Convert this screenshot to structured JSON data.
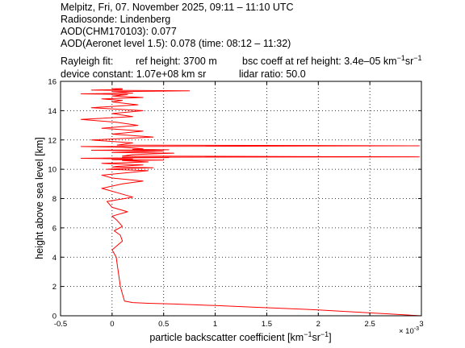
{
  "header": {
    "line1": "Melpitz, Fri, 07. November 2025, 09:11 – 11:10 UTC",
    "line2": "Radiosonde: Lindenberg",
    "line3": "AOD(CHM170103): 0.077",
    "line4": "AOD(Aeronet level 1.5): 0.078   (time: 08:12 – 11:32)",
    "rayleigh_label": "Rayleigh fit:",
    "ref_height": "ref height: 3700 m",
    "bsc_coeff_prefix": "bsc coeff at ref height: 3.4e–05 km",
    "bsc_coeff_mid": "sr",
    "sup_minus1": "−1",
    "device_constant": "device constant: 1.07e+08 km sr",
    "lidar_ratio": "lidar ratio: 50.0"
  },
  "colors": {
    "line": "#ff0000",
    "axes": "#000000"
  },
  "chart_data": {
    "type": "line",
    "title": "",
    "xlabel": "particle backscatter coefficient [km",
    "xlabel_mid": "sr",
    "xlabel_end": "]",
    "x_exponent": "× 10",
    "x_exponent_power": "-3",
    "ylabel": "height above sea level [km]",
    "xlim": [
      -0.5,
      3.0
    ],
    "ylim": [
      0,
      16
    ],
    "xticks": [
      -0.5,
      0,
      0.5,
      1,
      1.5,
      2,
      2.5,
      3
    ],
    "xtick_labels": [
      "-0.5",
      "0",
      "0.5",
      "1",
      "1.5",
      "2",
      "2.5",
      "3"
    ],
    "yticks": [
      0,
      2,
      4,
      6,
      8,
      10,
      12,
      14,
      16
    ],
    "ytick_labels": [
      "0",
      "2",
      "4",
      "6",
      "8",
      "10",
      "12",
      "14",
      "16"
    ],
    "grid": true,
    "series": [
      {
        "x": [
          3.0,
          2.5,
          2.0,
          1.5,
          1.0,
          0.6,
          0.35,
          0.2,
          0.12,
          0.1,
          0.08,
          0.07,
          0.06,
          0.05,
          0.04,
          0.0,
          0.05,
          0.1,
          0.08,
          0.02,
          0.1,
          0.05,
          0.0,
          0.15,
          0.0,
          -0.05,
          0.2,
          0.05,
          -0.1,
          0.1,
          0.3,
          0.0,
          -0.1,
          0.2,
          0.35,
          -0.05,
          0.1,
          0.4,
          0.0,
          0.05,
          0.3,
          0.1,
          -0.1,
          0.35,
          0.1,
          0.5,
          0.0,
          0.2,
          -0.3,
          0.55,
          0.1,
          2.98,
          0.1,
          0.2,
          0.6,
          0.0,
          0.3,
          0.5,
          -0.2,
          0.55,
          0.2,
          0.3,
          0.1,
          -0.3,
          2.98,
          0.05,
          0.2,
          -0.2,
          0.4,
          0.0,
          0.3,
          -0.1,
          0.25,
          0.05,
          -0.3,
          0.2,
          0.0,
          0.3,
          -0.2,
          0.25,
          0.0,
          0.1,
          -0.1,
          0.3,
          0.0,
          0.15,
          -0.3,
          0.2,
          0.0,
          0.75,
          -0.2,
          0.1,
          0.0,
          0.1
        ],
        "y": [
          0.0,
          0.2,
          0.4,
          0.55,
          0.7,
          0.8,
          0.85,
          0.9,
          1.0,
          1.5,
          2.0,
          2.5,
          3.0,
          3.5,
          4.0,
          4.5,
          4.8,
          5.1,
          5.5,
          5.8,
          6.1,
          6.5,
          6.8,
          7.1,
          7.4,
          7.8,
          8.1,
          8.4,
          8.7,
          9.0,
          9.2,
          9.4,
          9.6,
          9.8,
          9.9,
          10.0,
          10.05,
          10.1,
          10.15,
          10.2,
          10.3,
          10.35,
          10.4,
          10.5,
          10.6,
          10.62,
          10.65,
          10.7,
          10.75,
          10.8,
          10.82,
          10.85,
          10.9,
          11.0,
          11.1,
          11.15,
          11.2,
          11.25,
          11.3,
          11.33,
          11.36,
          11.4,
          11.5,
          11.55,
          11.6,
          11.65,
          11.8,
          12.0,
          12.2,
          12.4,
          12.6,
          12.8,
          13.0,
          13.2,
          13.4,
          13.6,
          13.8,
          14.0,
          14.2,
          14.4,
          14.6,
          14.7,
          14.8,
          14.9,
          15.0,
          15.1,
          15.15,
          15.2,
          15.3,
          15.35,
          15.4,
          15.45,
          15.5,
          15.5
        ]
      }
    ]
  }
}
